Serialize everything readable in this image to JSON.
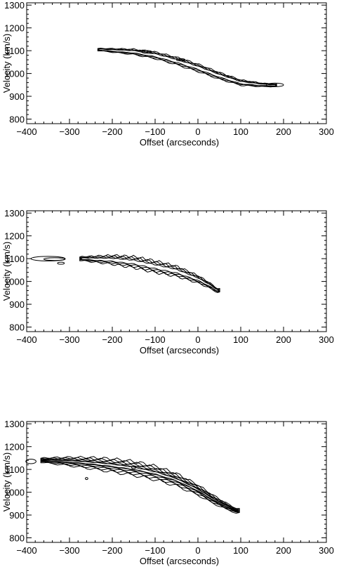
{
  "chart_data": [
    {
      "type": "contour",
      "xlabel": "Offset (arcseconds)",
      "ylabel": "Velocity (km/s)",
      "xlim": [
        -400,
        300
      ],
      "ylim": [
        780,
        1310
      ],
      "xticks": [
        -400,
        -300,
        -200,
        -100,
        0,
        100,
        200,
        300
      ],
      "yticks": [
        800,
        900,
        1000,
        1100,
        1200,
        1300
      ],
      "grid": false,
      "ridge": [
        [
          -230,
          1105
        ],
        [
          -150,
          1095
        ],
        [
          -100,
          1080
        ],
        [
          -50,
          1055
        ],
        [
          0,
          1025
        ],
        [
          50,
          990
        ],
        [
          100,
          960
        ],
        [
          150,
          950
        ],
        [
          180,
          948
        ]
      ],
      "levels": [
        [
          8,
          16
        ],
        [
          6,
          13
        ],
        [
          4,
          10
        ],
        [
          3,
          7
        ]
      ],
      "blobs": [
        [
          180,
          950,
          20,
          8
        ],
        [
          -120,
          1095,
          12,
          6
        ],
        [
          -40,
          1060,
          10,
          5
        ]
      ]
    },
    {
      "type": "contour",
      "xlabel": "Offset (arcseconds)",
      "ylabel": "Velocity (km/s)",
      "xlim": [
        -400,
        300
      ],
      "ylim": [
        780,
        1310
      ],
      "xticks": [
        -400,
        -300,
        -200,
        -100,
        0,
        100,
        200,
        300
      ],
      "yticks": [
        800,
        900,
        1000,
        1100,
        1200,
        1300
      ],
      "grid": false,
      "ridge": [
        [
          -270,
          1100
        ],
        [
          -200,
          1095
        ],
        [
          -150,
          1085
        ],
        [
          -100,
          1065
        ],
        [
          -50,
          1045
        ],
        [
          0,
          1010
        ],
        [
          30,
          980
        ],
        [
          45,
          960
        ]
      ],
      "levels": [
        [
          12,
          25
        ],
        [
          9,
          20
        ],
        [
          6,
          14
        ],
        [
          4,
          9
        ]
      ],
      "blobs": [
        [
          -350,
          1100,
          40,
          10
        ],
        [
          -335,
          1098,
          25,
          6
        ],
        [
          -320,
          1080,
          8,
          4
        ]
      ]
    },
    {
      "type": "contour",
      "xlabel": "Offset (arcseconds)",
      "ylabel": "Velocity (km/s)",
      "xlim": [
        -400,
        300
      ],
      "ylim": [
        780,
        1310
      ],
      "xticks": [
        -400,
        -300,
        -200,
        -100,
        0,
        100,
        200,
        300
      ],
      "yticks": [
        800,
        900,
        1000,
        1100,
        1200,
        1300
      ],
      "grid": false,
      "ridge": [
        [
          -360,
          1140
        ],
        [
          -300,
          1135
        ],
        [
          -250,
          1128
        ],
        [
          -200,
          1118
        ],
        [
          -150,
          1105
        ],
        [
          -100,
          1085
        ],
        [
          -50,
          1055
        ],
        [
          0,
          1010
        ],
        [
          30,
          975
        ],
        [
          60,
          945
        ],
        [
          90,
          918
        ]
      ],
      "levels": [
        [
          14,
          30
        ],
        [
          11,
          24
        ],
        [
          8,
          18
        ],
        [
          6,
          13
        ],
        [
          4,
          8
        ],
        [
          2.5,
          5
        ]
      ],
      "blobs": [
        [
          -390,
          1135,
          12,
          10
        ],
        [
          -260,
          1060,
          3,
          3
        ],
        [
          -150,
          1108,
          5,
          3
        ]
      ]
    }
  ]
}
